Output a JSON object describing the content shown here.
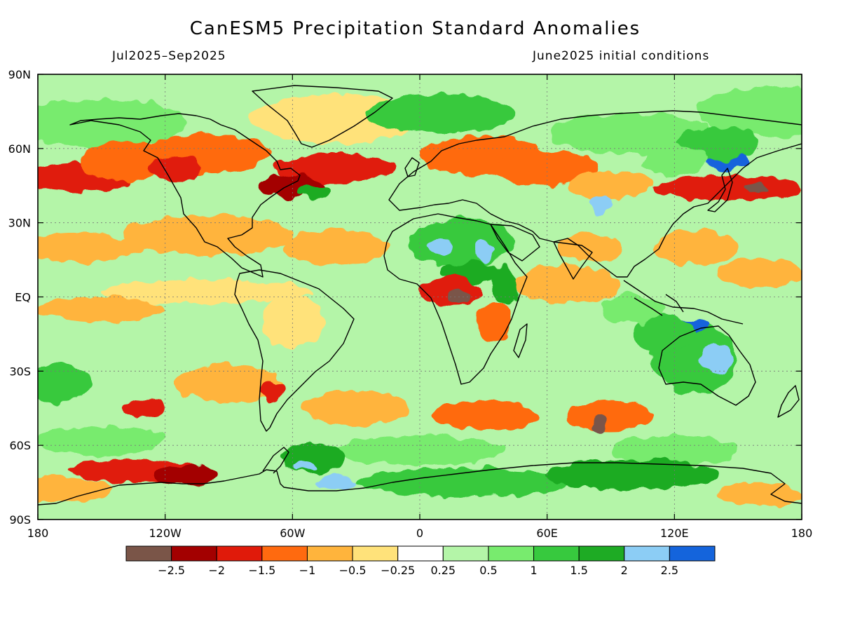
{
  "title": "CanESM5 Precipitation Standard Anomalies",
  "period": "Jul2025–Sep2025",
  "initial_conditions": "June2025 initial conditions",
  "axes": {
    "y_ticks": [
      {
        "lat": 90,
        "label": "90N"
      },
      {
        "lat": 60,
        "label": "60N"
      },
      {
        "lat": 30,
        "label": "30N"
      },
      {
        "lat": 0,
        "label": "EQ"
      },
      {
        "lat": -30,
        "label": "30S"
      },
      {
        "lat": -60,
        "label": "60S"
      },
      {
        "lat": -90,
        "label": "90S"
      }
    ],
    "x_ticks": [
      {
        "lon": -180,
        "label": "180"
      },
      {
        "lon": -120,
        "label": "120W"
      },
      {
        "lon": -60,
        "label": "60W"
      },
      {
        "lon": 0,
        "label": "0"
      },
      {
        "lon": 60,
        "label": "60E"
      },
      {
        "lon": 120,
        "label": "120E"
      },
      {
        "lon": 180,
        "label": "180"
      }
    ]
  },
  "colorbar": {
    "colors": [
      "#7a5548",
      "#a30000",
      "#e01a0a",
      "#ff6a0f",
      "#ffb43c",
      "#ffe27a",
      "#ffffff",
      "#b4f5a8",
      "#78eb6e",
      "#37c93e",
      "#1eab24",
      "#8ccdf5",
      "#1464dc"
    ],
    "labels": [
      "−2.5",
      "−2",
      "−1.5",
      "−1",
      "−0.5",
      "−0.25",
      "0.25",
      "0.5",
      "1",
      "1.5",
      "2",
      "2.5"
    ]
  },
  "anomaly_regions": [
    {
      "lon": 170,
      "lat": 75,
      "rx": 40,
      "ry": 10,
      "value": 0.5
    },
    {
      "lon": -40,
      "lat": 72,
      "rx": 40,
      "ry": 10,
      "value": -0.3
    },
    {
      "lon": -150,
      "lat": 70,
      "rx": 40,
      "ry": 10,
      "value": 0.8
    },
    {
      "lon": 10,
      "lat": 74,
      "rx": 35,
      "ry": 8,
      "value": 1.0
    },
    {
      "lon": 100,
      "lat": 66,
      "rx": 40,
      "ry": 8,
      "value": 0.6
    },
    {
      "lon": -100,
      "lat": 58,
      "rx": 30,
      "ry": 8,
      "value": -1.2
    },
    {
      "lon": -160,
      "lat": 48,
      "rx": 25,
      "ry": 6,
      "value": -2.0
    },
    {
      "lon": -140,
      "lat": 55,
      "rx": 20,
      "ry": 8,
      "value": -1.5
    },
    {
      "lon": -115,
      "lat": 52,
      "rx": 12,
      "ry": 5,
      "value": -2.0
    },
    {
      "lon": -40,
      "lat": 52,
      "rx": 28,
      "ry": 6,
      "value": -1.8
    },
    {
      "lon": -60,
      "lat": 45,
      "rx": 15,
      "ry": 5,
      "value": -2.1
    },
    {
      "lon": -50,
      "lat": 42,
      "rx": 8,
      "ry": 3,
      "value": 1.8
    },
    {
      "lon": 30,
      "lat": 57,
      "rx": 30,
      "ry": 8,
      "value": -1.2
    },
    {
      "lon": 60,
      "lat": 52,
      "rx": 25,
      "ry": 7,
      "value": -1.5
    },
    {
      "lon": 90,
      "lat": 45,
      "rx": 20,
      "ry": 6,
      "value": -0.8
    },
    {
      "lon": 85,
      "lat": 38,
      "rx": 5,
      "ry": 4,
      "value": 2.3
    },
    {
      "lon": 145,
      "lat": 44,
      "rx": 35,
      "ry": 5,
      "value": -1.9
    },
    {
      "lon": 158,
      "lat": 44,
      "rx": 6,
      "ry": 2,
      "value": -2.6
    },
    {
      "lon": 145,
      "lat": 55,
      "rx": 10,
      "ry": 4,
      "value": 2.6
    },
    {
      "lon": 140,
      "lat": 62,
      "rx": 20,
      "ry": 7,
      "value": 1.2
    },
    {
      "lon": 120,
      "lat": 55,
      "rx": 15,
      "ry": 6,
      "value": 0.8
    },
    {
      "lon": -100,
      "lat": 25,
      "rx": 40,
      "ry": 8,
      "value": -0.7
    },
    {
      "lon": -160,
      "lat": 20,
      "rx": 30,
      "ry": 6,
      "value": -0.8
    },
    {
      "lon": -40,
      "lat": 20,
      "rx": 25,
      "ry": 7,
      "value": -0.6
    },
    {
      "lon": 20,
      "lat": 22,
      "rx": 25,
      "ry": 10,
      "value": 1.0
    },
    {
      "lon": 10,
      "lat": 20,
      "rx": 6,
      "ry": 3,
      "value": 2.1
    },
    {
      "lon": 30,
      "lat": 18,
      "rx": 5,
      "ry": 4,
      "value": 2.2
    },
    {
      "lon": 25,
      "lat": 10,
      "rx": 15,
      "ry": 4,
      "value": 1.5
    },
    {
      "lon": 40,
      "lat": 5,
      "rx": 6,
      "ry": 8,
      "value": 1.6
    },
    {
      "lon": 15,
      "lat": 2,
      "rx": 15,
      "ry": 6,
      "value": -1.8
    },
    {
      "lon": 18,
      "lat": 0,
      "rx": 6,
      "ry": 3,
      "value": -2.7
    },
    {
      "lon": 35,
      "lat": -10,
      "rx": 8,
      "ry": 8,
      "value": -1.2
    },
    {
      "lon": 80,
      "lat": 20,
      "rx": 15,
      "ry": 6,
      "value": -0.8
    },
    {
      "lon": 130,
      "lat": 20,
      "rx": 20,
      "ry": 7,
      "value": -0.9
    },
    {
      "lon": 160,
      "lat": 10,
      "rx": 20,
      "ry": 6,
      "value": -0.6
    },
    {
      "lon": -100,
      "lat": 2,
      "rx": 50,
      "ry": 5,
      "value": -0.5
    },
    {
      "lon": -150,
      "lat": -5,
      "rx": 30,
      "ry": 5,
      "value": -0.6
    },
    {
      "lon": -60,
      "lat": -10,
      "rx": 15,
      "ry": 10,
      "value": -0.5
    },
    {
      "lon": 70,
      "lat": 5,
      "rx": 25,
      "ry": 8,
      "value": -0.6
    },
    {
      "lon": 130,
      "lat": -25,
      "rx": 20,
      "ry": 14,
      "value": 1.3
    },
    {
      "lon": 125,
      "lat": -12,
      "rx": 12,
      "ry": 3,
      "value": 2.7
    },
    {
      "lon": 140,
      "lat": -25,
      "rx": 8,
      "ry": 6,
      "value": 2.4
    },
    {
      "lon": 115,
      "lat": -15,
      "rx": 15,
      "ry": 8,
      "value": 1.2
    },
    {
      "lon": 100,
      "lat": -5,
      "rx": 15,
      "ry": 6,
      "value": 0.8
    },
    {
      "lon": -170,
      "lat": -35,
      "rx": 15,
      "ry": 8,
      "value": 1.0
    },
    {
      "lon": -90,
      "lat": -35,
      "rx": 25,
      "ry": 8,
      "value": -1.0
    },
    {
      "lon": -70,
      "lat": -38,
      "rx": 6,
      "ry": 4,
      "value": -2.0
    },
    {
      "lon": -130,
      "lat": -45,
      "rx": 10,
      "ry": 4,
      "value": -1.6
    },
    {
      "lon": -30,
      "lat": -45,
      "rx": 25,
      "ry": 7,
      "value": -1.0
    },
    {
      "lon": 30,
      "lat": -48,
      "rx": 25,
      "ry": 6,
      "value": -1.2
    },
    {
      "lon": 90,
      "lat": -48,
      "rx": 20,
      "ry": 6,
      "value": -1.5
    },
    {
      "lon": 85,
      "lat": -52,
      "rx": 4,
      "ry": 3,
      "value": -2.6
    },
    {
      "lon": -150,
      "lat": -58,
      "rx": 30,
      "ry": 6,
      "value": 0.9
    },
    {
      "lon": 0,
      "lat": -62,
      "rx": 40,
      "ry": 6,
      "value": 0.6
    },
    {
      "lon": 120,
      "lat": -62,
      "rx": 30,
      "ry": 6,
      "value": 0.7
    },
    {
      "lon": -135,
      "lat": -70,
      "rx": 30,
      "ry": 5,
      "value": -1.8
    },
    {
      "lon": -110,
      "lat": -72,
      "rx": 15,
      "ry": 4,
      "value": -2.1
    },
    {
      "lon": -170,
      "lat": -78,
      "rx": 25,
      "ry": 5,
      "value": -0.9
    },
    {
      "lon": -50,
      "lat": -65,
      "rx": 15,
      "ry": 6,
      "value": 1.5
    },
    {
      "lon": -55,
      "lat": -68,
      "rx": 5,
      "ry": 2,
      "value": 2.2
    },
    {
      "lon": -40,
      "lat": -75,
      "rx": 10,
      "ry": 3,
      "value": 2.3
    },
    {
      "lon": 20,
      "lat": -75,
      "rx": 50,
      "ry": 6,
      "value": 1.3
    },
    {
      "lon": 100,
      "lat": -72,
      "rx": 40,
      "ry": 6,
      "value": 1.5
    },
    {
      "lon": 160,
      "lat": -80,
      "rx": 20,
      "ry": 5,
      "value": -1.0
    }
  ]
}
